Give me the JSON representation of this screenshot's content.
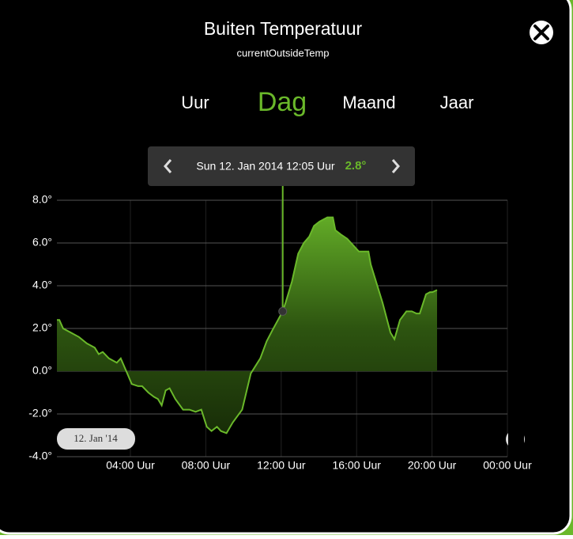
{
  "header": {
    "title": "Buiten Temperatuur",
    "subtitle": "currentOutsideTemp"
  },
  "tabs": [
    "Uur",
    "Dag",
    "Maand",
    "Jaar"
  ],
  "active_tab": 1,
  "tooltip": {
    "time": "Sun 12. Jan 2014 12:05 Uur",
    "value": {
      "value": 2.8,
      "label": "2.8°"
    }
  },
  "date_badge": "12. Jan '14",
  "chart_data": {
    "type": "area",
    "x": [
      0.1,
      0.23,
      0.43,
      0.85,
      1.27,
      1.69,
      2.11,
      2.32,
      2.53,
      2.86,
      3.28,
      3.49,
      3.78,
      4.07,
      4.41,
      4.62,
      4.95,
      5.25,
      5.46,
      5.66,
      5.87,
      6.08,
      6.38,
      6.79,
      7.13,
      7.46,
      7.76,
      8.05,
      8.3,
      8.59,
      8.8,
      9.1,
      9.43,
      9.93,
      10.39,
      10.89,
      11.23,
      11.52,
      12.08,
      12.23,
      12.57,
      12.9,
      13.2,
      13.49,
      13.74,
      14.03,
      14.45,
      14.74,
      14.87,
      15.16,
      15.5,
      16.12,
      16.63,
      16.75,
      17.38,
      17.8,
      18.01,
      18.3,
      18.64,
      18.93,
      19.18,
      19.35,
      19.68,
      19.89,
      20.02,
      20.27
    ],
    "series": [
      {
        "color": "#6ab82a",
        "values": [
          2.4,
          2.4,
          2.0,
          1.8,
          1.6,
          1.3,
          1.1,
          0.8,
          0.9,
          0.6,
          0.4,
          0.6,
          0.0,
          -0.6,
          -0.7,
          -0.7,
          -1.0,
          -1.2,
          -1.3,
          -1.6,
          -0.9,
          -0.8,
          -1.3,
          -1.8,
          -1.8,
          -1.9,
          -1.8,
          -2.6,
          -2.8,
          -2.6,
          -2.8,
          -2.9,
          -2.4,
          -1.8,
          -0.1,
          0.6,
          1.4,
          1.9,
          2.8,
          3.2,
          4.2,
          5.5,
          6.0,
          6.3,
          6.8,
          7.0,
          7.2,
          7.2,
          6.6,
          6.4,
          6.2,
          5.6,
          5.6,
          5.0,
          3.2,
          1.8,
          1.5,
          2.4,
          2.8,
          2.8,
          2.7,
          2.7,
          3.6,
          3.7,
          3.7,
          3.8
        ]
      }
    ],
    "xlim": [
      0.1,
      24
    ],
    "xticks": [
      {
        "value": 4,
        "label": "04:00 Uur"
      },
      {
        "value": 8,
        "label": "08:00 Uur"
      },
      {
        "value": 12,
        "label": "12:00 Uur"
      },
      {
        "value": 16,
        "label": "16:00 Uur"
      },
      {
        "value": 20,
        "label": "20:00 Uur"
      },
      {
        "value": 24,
        "label": "00:00 Uur"
      }
    ],
    "ylim": [
      -4,
      8
    ],
    "yticks": [
      {
        "value": -4,
        "label": "-4.0°"
      },
      {
        "value": -2,
        "label": "-2.0°"
      },
      {
        "value": 0,
        "label": "0.0°"
      },
      {
        "value": 2,
        "label": "2.0°"
      },
      {
        "value": 4,
        "label": "4.0°"
      },
      {
        "value": 6,
        "label": "6.0°"
      },
      {
        "value": 8,
        "label": "8.0°"
      }
    ],
    "grid": true
  }
}
